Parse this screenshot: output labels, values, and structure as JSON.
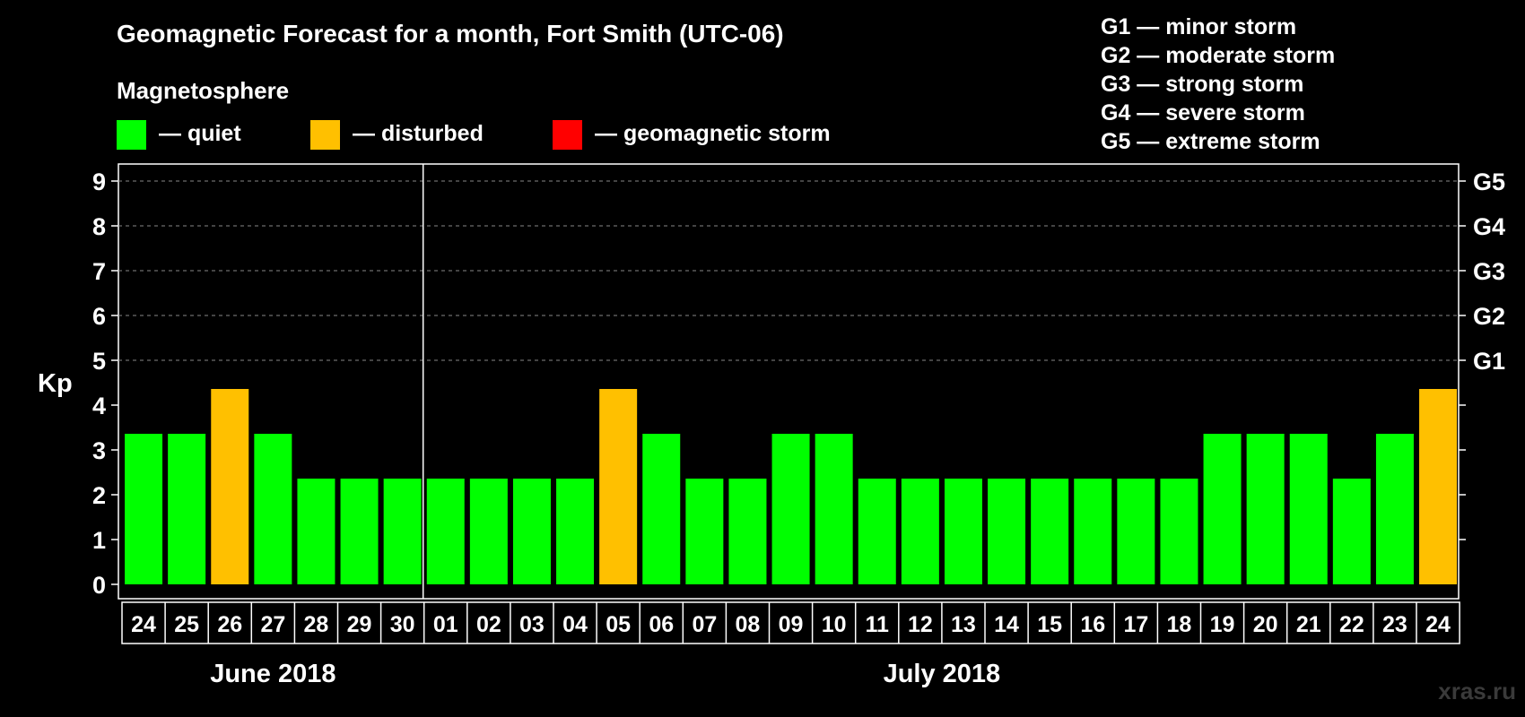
{
  "title": "Geomagnetic Forecast for a month, Fort Smith (UTC-06)",
  "subtitle": "Magnetosphere",
  "legend": [
    {
      "label": "— quiet",
      "color": "#00ff00"
    },
    {
      "label": "— disturbed",
      "color": "#ffc000"
    },
    {
      "label": "— geomagnetic storm",
      "color": "#ff0000"
    }
  ],
  "storm_levels": [
    "G1 — minor storm",
    "G2 — moderate storm",
    "G3 — strong storm",
    "G4 — severe storm",
    "G5 — extreme storm"
  ],
  "watermark": "xras.ru",
  "chart_data": {
    "type": "bar",
    "title": "Geomagnetic Forecast for a month, Fort Smith (UTC-06)",
    "ylabel": "Kp",
    "ylim": [
      0,
      9
    ],
    "yticks": [
      0,
      1,
      2,
      3,
      4,
      5,
      6,
      7,
      8,
      9
    ],
    "right_ticks": [
      {
        "value": 5,
        "label": "G1"
      },
      {
        "value": 6,
        "label": "G2"
      },
      {
        "value": 7,
        "label": "G3"
      },
      {
        "value": 8,
        "label": "G4"
      },
      {
        "value": 9,
        "label": "G5"
      }
    ],
    "categories": [
      "24",
      "25",
      "26",
      "27",
      "28",
      "29",
      "30",
      "01",
      "02",
      "03",
      "04",
      "05",
      "06",
      "07",
      "08",
      "09",
      "10",
      "11",
      "12",
      "13",
      "14",
      "15",
      "16",
      "17",
      "18",
      "19",
      "20",
      "21",
      "22",
      "23",
      "24"
    ],
    "values": [
      3,
      3,
      4,
      3,
      2,
      2,
      2,
      2,
      2,
      2,
      2,
      4,
      3,
      2,
      2,
      3,
      3,
      2,
      2,
      2,
      2,
      2,
      2,
      2,
      2,
      3,
      3,
      3,
      2,
      3,
      4
    ],
    "colors": {
      "quiet": "#00ff00",
      "disturbed": "#ffc000",
      "storm": "#ff0000"
    },
    "months": [
      {
        "label": "June 2018",
        "start_index": 0,
        "end_index": 6
      },
      {
        "label": "July 2018",
        "start_index": 7,
        "end_index": 30
      }
    ],
    "grid": true
  }
}
